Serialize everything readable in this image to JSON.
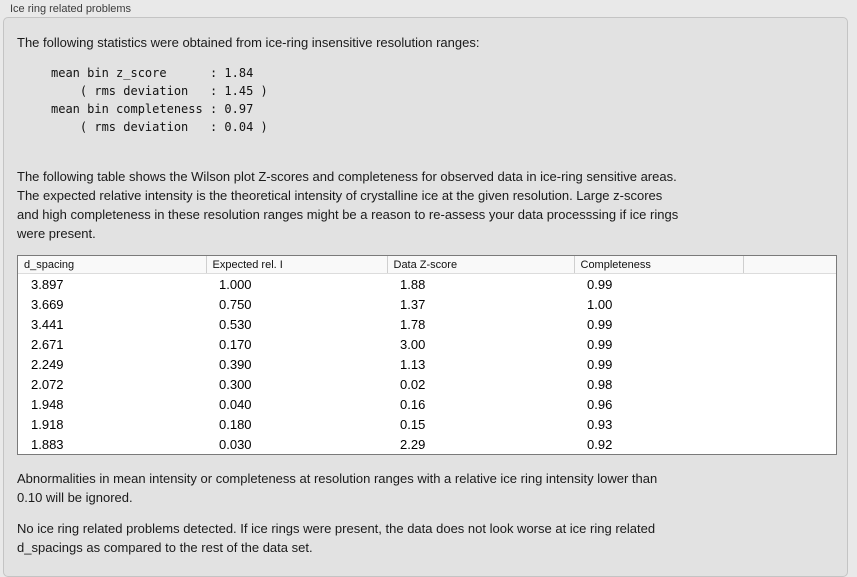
{
  "panel": {
    "title": "Ice ring related problems",
    "intro": "The following statistics were obtained from ice-ring insensitive resolution ranges:",
    "stats_block": "mean bin z_score      : 1.84\n    ( rms deviation   : 1.45 )\nmean bin completeness : 0.97\n    ( rms deviation   : 0.04 )",
    "table_description": "The following table shows the Wilson plot Z-scores and completeness for observed data in ice-ring sensitive areas.\nThe expected relative intensity is the theoretical intensity of crystalline ice at the given resolution. Large z-scores\nand high completeness in these resolution ranges might be a reason to re-assess your data processsing if ice rings\nwere present.",
    "ignore_note": "Abnormalities in mean intensity or completeness at resolution ranges with a relative ice ring intensity lower than\n0.10 will be ignored.",
    "conclusion": "No ice ring related problems detected. If ice rings were present, the data does not look worse at ice ring related\nd_spacings as compared to the rest of the data set."
  },
  "table": {
    "headers": [
      "d_spacing",
      "Expected rel. I",
      "Data Z-score",
      "Completeness",
      ""
    ],
    "rows": [
      [
        "3.897",
        "1.000",
        "1.88",
        "0.99"
      ],
      [
        "3.669",
        "0.750",
        "1.37",
        "1.00"
      ],
      [
        "3.441",
        "0.530",
        "1.78",
        "0.99"
      ],
      [
        "2.671",
        "0.170",
        "3.00",
        "0.99"
      ],
      [
        "2.249",
        "0.390",
        "1.13",
        "0.99"
      ],
      [
        "2.072",
        "0.300",
        "0.02",
        "0.98"
      ],
      [
        "1.948",
        "0.040",
        "0.16",
        "0.96"
      ],
      [
        "1.918",
        "0.180",
        "0.15",
        "0.93"
      ],
      [
        "1.883",
        "0.030",
        "2.29",
        "0.92"
      ]
    ]
  },
  "colors": {
    "page_bg": "#e9e9e9",
    "panel_bg": "#e2e2e2",
    "panel_border": "#c4c4c4",
    "table_border": "#7a7a7a",
    "header_bg": "#f9f9f9"
  }
}
